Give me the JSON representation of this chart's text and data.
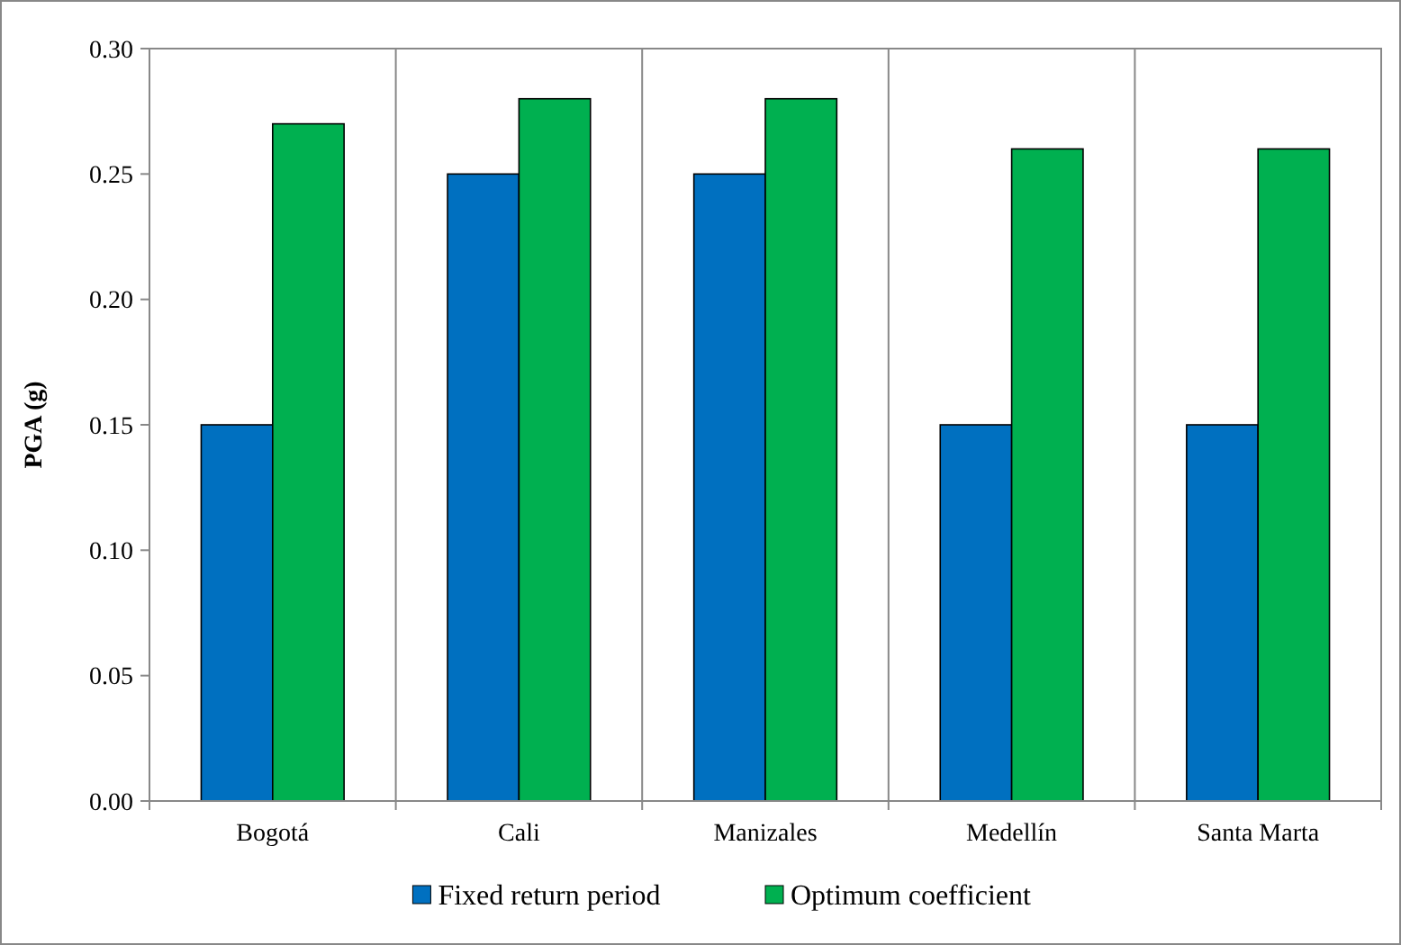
{
  "chart_data": {
    "type": "bar",
    "ylabel": "PGA (g)",
    "categories": [
      "Bogotá",
      "Cali",
      "Manizales",
      "Medellín",
      "Santa Marta"
    ],
    "series": [
      {
        "name": "Fixed return period",
        "color": "#0070c0",
        "values": [
          0.15,
          0.25,
          0.25,
          0.15,
          0.15
        ]
      },
      {
        "name": "Optimum coefficient",
        "color": "#00b050",
        "values": [
          0.27,
          0.28,
          0.28,
          0.26,
          0.26
        ]
      }
    ],
    "ylim": [
      0,
      0.3
    ],
    "yticks": [
      {
        "value": 0,
        "label": "0.00"
      },
      {
        "value": 0.05,
        "label": "0.05"
      },
      {
        "value": 0.1,
        "label": "0.10"
      },
      {
        "value": 0.15,
        "label": "0.15"
      },
      {
        "value": 0.2,
        "label": "0.20"
      },
      {
        "value": 0.25,
        "label": "0.25"
      },
      {
        "value": 0.3,
        "label": "0.30"
      }
    ],
    "grid": "x",
    "legend": "bottom"
  }
}
